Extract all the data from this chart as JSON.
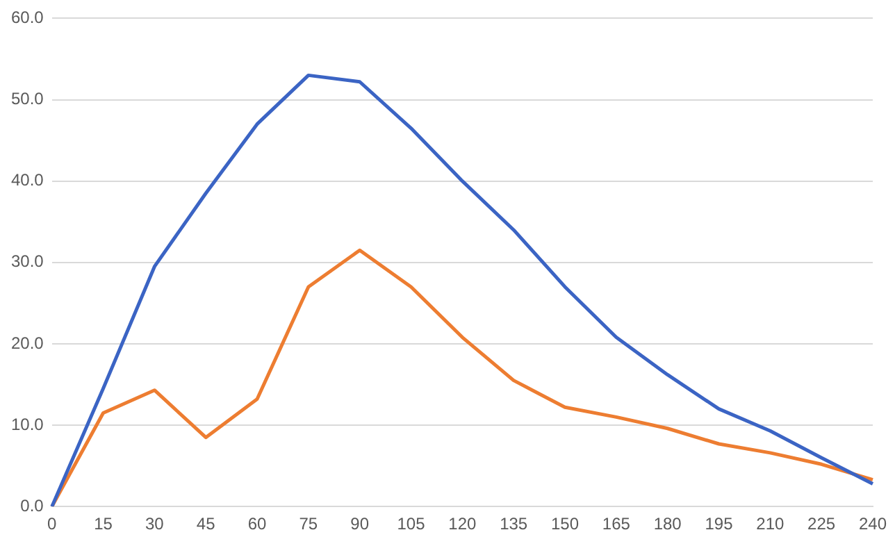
{
  "chart_data": {
    "type": "line",
    "categories": [
      "0",
      "15",
      "30",
      "45",
      "60",
      "75",
      "90",
      "105",
      "120",
      "135",
      "150",
      "165",
      "180",
      "195",
      "210",
      "225",
      "240"
    ],
    "series": [
      {
        "color": "#3b64c4",
        "values": [
          0,
          14.5,
          29.5,
          38.5,
          47,
          53,
          52.2,
          46.5,
          40,
          34,
          27,
          20.8,
          16.2,
          12,
          9.3,
          6,
          2.8
        ]
      },
      {
        "color": "#ed7d31",
        "values": [
          0,
          11.5,
          14.3,
          8.5,
          13.2,
          27,
          31.5,
          27,
          20.8,
          15.5,
          12.2,
          11,
          9.6,
          7.7,
          6.6,
          5.2,
          3.3
        ]
      }
    ],
    "ylim": [
      0,
      60
    ],
    "yticks": [
      {
        "value": 0,
        "label": "0.0"
      },
      {
        "value": 10,
        "label": "10.0"
      },
      {
        "value": 20,
        "label": "20.0"
      },
      {
        "value": 30,
        "label": "30.0"
      },
      {
        "value": 40,
        "label": "40.0"
      },
      {
        "value": 50,
        "label": "50.0"
      },
      {
        "value": 60,
        "label": "60.0"
      }
    ],
    "grid": "y",
    "legend": false,
    "marker": "none",
    "line_style": "solid"
  }
}
